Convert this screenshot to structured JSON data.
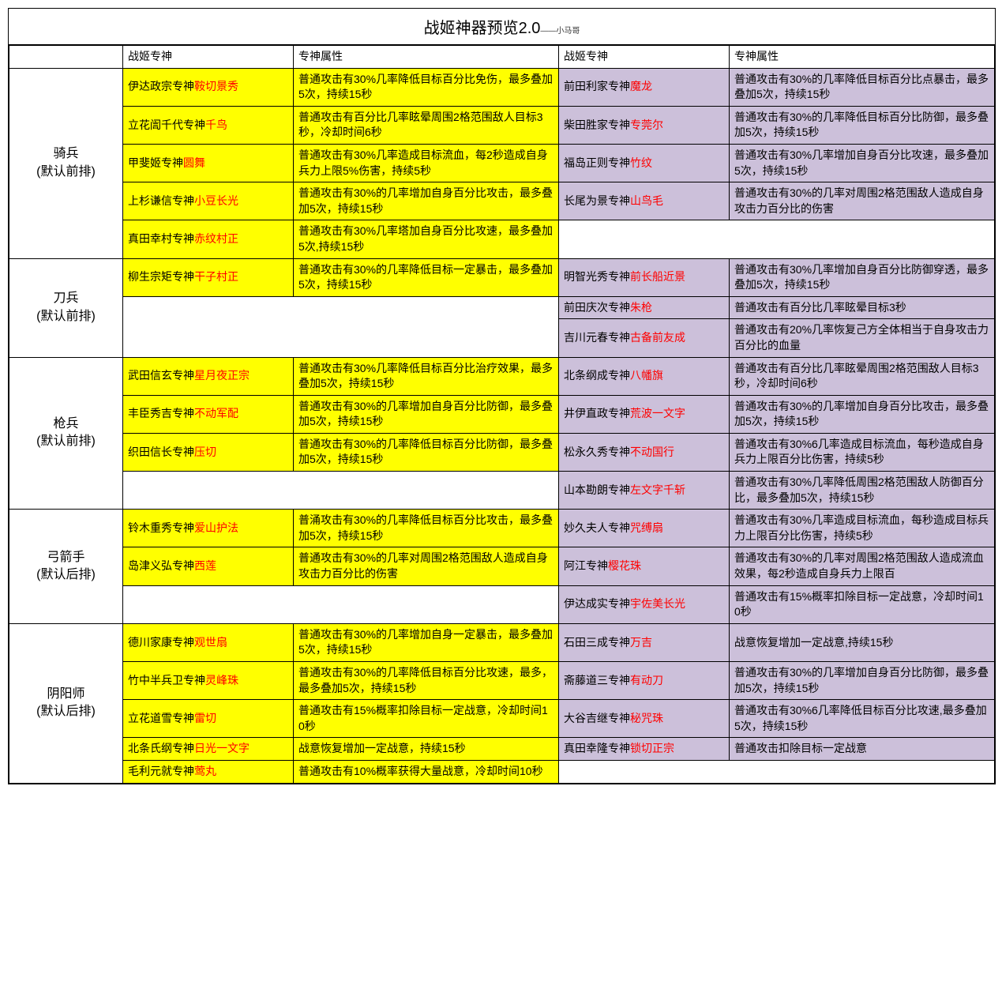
{
  "title": "战姬神器预览2.0",
  "subtitle": "——小马哥",
  "headers": {
    "hero": "战姬专神",
    "attr": "专神属性"
  },
  "colors": {
    "yellow": "#ffff00",
    "purple": "#ccc0da",
    "artifact_text": "#ff0000",
    "border": "#000000",
    "bg": "#ffffff"
  },
  "categories": [
    {
      "name": "骑兵",
      "note": "(默认前排)",
      "rows": [
        {
          "l_pre": "伊达政宗专神",
          "l_art": "鞍切景秀",
          "l_attr": "普通攻击有30%几率降低目标百分比免伤，最多叠加5次，持续15秒",
          "r_pre": "前田利家专神",
          "r_art": "魔龙",
          "r_attr": "普通攻击有30%的几率降低目标百分比点暴击，最多叠加5次，持续15秒"
        },
        {
          "l_pre": "立花訚千代专神",
          "l_art": "千鸟",
          "l_attr": "普通攻击有百分比几率眩晕周围2格范围敌人目标3秒，冷却时间6秒",
          "r_pre": "柴田胜家专神",
          "r_art": "专莞尔",
          "r_attr": "普通攻击有30%的几率降低目标百分比防御，最多叠加5次，持续15秒"
        },
        {
          "l_pre": "甲斐姬专神",
          "l_art": "圆舞",
          "l_attr": "普通攻击有30%几率造成目标流血，每2秒造成自身兵力上限5%伤害，持续5秒",
          "r_pre": "福岛正则专神",
          "r_art": "竹纹",
          "r_attr": "普通攻击有30%几率增加自身百分比攻速，最多叠加5次，持续15秒"
        },
        {
          "l_pre": "上杉谦信专神",
          "l_art": "小豆长光",
          "l_attr": "普通攻击有30%的几率增加自身百分比攻击，最多叠加5次，持续15秒",
          "r_pre": "长尾为景专神",
          "r_art": "山鸟毛",
          "r_attr": "普通攻击有30%的几率对周围2格范围敌人造成自身攻击力百分比的伤害"
        },
        {
          "l_pre": "真田幸村专神",
          "l_art": "赤纹村正",
          "l_attr": "普通攻击有30%几率塔加自身百分比攻速，最多叠加5次,持续15秒",
          "r_pre": "",
          "r_art": "",
          "r_attr": ""
        }
      ]
    },
    {
      "name": "刀兵",
      "note": "(默认前排)",
      "rows": [
        {
          "l_pre": "柳生宗矩专神",
          "l_art": "干子村正",
          "l_attr": "普通攻击有30%的几率降低目标一定暴击，最多叠加5次，持续15秒",
          "r_pre": "明智光秀专神",
          "r_art": "前长船近景",
          "r_attr": "普通攻击有30%几率增加自身百分比防御穿透，最多叠加5次，持续15秒"
        },
        {
          "l_pre": "",
          "l_art": "",
          "l_attr": "",
          "r_pre": "前田庆次专神",
          "r_art": "朱枪",
          "r_attr": "普通攻击有百分比几率眩晕目标3秒"
        },
        {
          "l_pre": "",
          "l_art": "",
          "l_attr": "",
          "r_pre": "吉川元春专神",
          "r_art": "古备前友成",
          "r_attr": "普通攻击有20%几率恢复己方全体相当于自身攻击力百分比的血量"
        }
      ],
      "mergeLeft": true
    },
    {
      "name": "枪兵",
      "note": "(默认前排)",
      "rows": [
        {
          "l_pre": "武田信玄专神",
          "l_art": "星月夜正宗",
          "l_attr": "普通攻击有30%几率降低目标百分比治疗效果，最多叠加5次，持续15秒",
          "r_pre": "北条纲成专神",
          "r_art": "八幡旗",
          "r_attr": "普通攻击有百分比几率眩晕周围2格范围敌人目标3秒，冷却时间6秒"
        },
        {
          "l_pre": "丰臣秀吉专神",
          "l_art": "不动军配",
          "l_attr": "普通攻击有30%的几率增加自身百分比防御，最多叠加5次，持续15秒",
          "r_pre": "井伊直政专神",
          "r_art": "荒波一文字",
          "r_attr": "普通攻击有30%的几率增加自身百分比攻击，最多叠加5次，持续15秒"
        },
        {
          "l_pre": "织田信长专神",
          "l_art": "压切",
          "l_attr": "普通攻击有30%的几率降低目标百分比防御，最多叠加5次，持续15秒",
          "r_pre": "松永久秀专神",
          "r_art": "不动国行",
          "r_attr": "普通攻击有30%6几率造成目标流血，每秒造成自身兵力上限百分比伤害，持续5秒"
        },
        {
          "l_pre": "",
          "l_art": "",
          "l_attr": "",
          "r_pre": "山本勘朗专神",
          "r_art": "左文字千斩",
          "r_attr": "普通攻击有30%几率降低周围2格范围敌人防御百分比，最多叠加5次，持续15秒"
        }
      ]
    },
    {
      "name": "弓箭手",
      "note": "(默认后排)",
      "rows": [
        {
          "l_pre": "铃木重秀专神",
          "l_art": "爱山护法",
          "l_attr": "普涌攻击有30%的几率降低目标百分比攻击，最多叠加5次，持续15秒",
          "r_pre": "妙久夫人专神",
          "r_art": "咒缚扇",
          "r_attr": "普通攻击有30%几率造成目标流血，每秒造成目标兵力上限百分比伤害，持续5秒"
        },
        {
          "l_pre": "岛津义弘专神",
          "l_art": "西莲",
          "l_attr": "普通攻击有30%的几率对周围2格范围敌人造成自身攻击力百分比的伤害",
          "r_pre": "阿江专神",
          "r_art": "樱花珠",
          "r_attr": "普通攻击有30%的几率对周围2格范围敌人造成流血效果，每2秒造成自身兵力上限百"
        },
        {
          "l_pre": "",
          "l_art": "",
          "l_attr": "",
          "r_pre": "伊达成实专神",
          "r_art": "宇佐美长光",
          "r_attr": "普通攻击有15%概率扣除目标一定战意，冷却时间10秒"
        }
      ]
    },
    {
      "name": "阴阳师",
      "note": "(默认后排)",
      "rows": [
        {
          "l_pre": "德川家康专神",
          "l_art": "观世扇",
          "l_attr": "普通攻击有30%的几率增加自身一定暴击，最多叠加5次，持续15秒",
          "r_pre": "石田三成专神",
          "r_art": "万吉",
          "r_attr": "战意恢复增加一定战意,持续15秒"
        },
        {
          "l_pre": "竹中半兵卫专神",
          "l_art": "灵峰珠",
          "l_attr": "普通攻击有30%的几率降低目标百分比攻速，最多，最多叠加5次，持续15秒",
          "r_pre": "斋藤道三专神",
          "r_art": "有动刀",
          "r_attr": "普通攻击有30%的几率增加自身百分比防御，最多叠加5次，持续15秒"
        },
        {
          "l_pre": "立花道雪专神",
          "l_art": "雷切",
          "l_attr": "普通攻击有15%概率扣除目标一定战意，冷却时间10秒",
          "r_pre": "大谷吉继专神",
          "r_art": "秘咒珠",
          "r_attr": "普通攻击有30%6几率降低目标百分比攻速,最多叠加5次，持续15秒"
        },
        {
          "l_pre": "北条氏纲专神",
          "l_art": "日光一文字",
          "l_attr": "战意恢复增加一定战意，持续15秒",
          "r_pre": "真田幸隆专神",
          "r_art": "锁切正宗",
          "r_attr": "普通攻击扣除目标一定战意"
        },
        {
          "l_pre": "毛利元就专神",
          "l_art": "莺丸",
          "l_attr": "普通攻击有10%概率获得大量战意，冷却时间10秒",
          "r_pre": "",
          "r_art": "",
          "r_attr": ""
        }
      ]
    }
  ]
}
